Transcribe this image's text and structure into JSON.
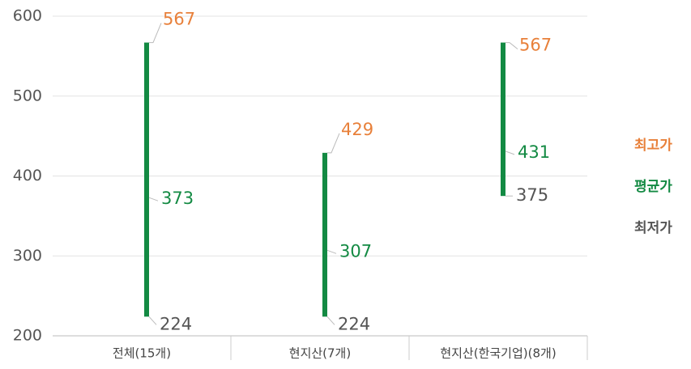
{
  "chart_data": {
    "type": "range",
    "categories": [
      "전체(15개)",
      "현지산(7개)",
      "현지산(한국기업)(8개)"
    ],
    "series": [
      {
        "name": "최고가",
        "color": "#e8803a",
        "values": [
          567,
          429,
          567
        ]
      },
      {
        "name": "평균가",
        "color": "#138a43",
        "values": [
          373,
          307,
          431
        ]
      },
      {
        "name": "최저가",
        "color": "#555555",
        "values": [
          224,
          224,
          375
        ]
      }
    ],
    "bar_color": "#138a43",
    "ylim": [
      200,
      600
    ],
    "yticks": [
      200,
      300,
      400,
      500,
      600
    ],
    "grid": true,
    "legend": "right"
  }
}
